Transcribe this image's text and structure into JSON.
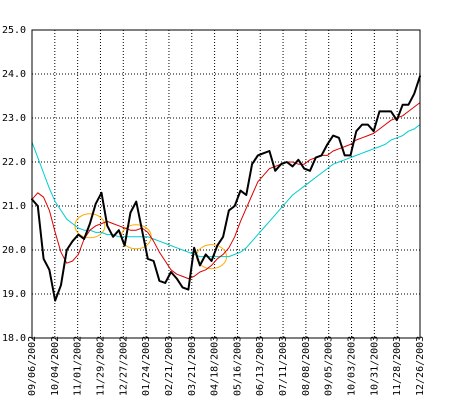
{
  "chart_data": {
    "type": "line",
    "title": "",
    "xlabel": "",
    "ylabel": "",
    "ylim": [
      18.0,
      25.0
    ],
    "y_ticks": [
      "18.0",
      "19.0",
      "20.0",
      "21.0",
      "22.0",
      "23.0",
      "24.0",
      "25.0"
    ],
    "x_ticks": [
      "09/06/2002",
      "10/04/2002",
      "11/01/2002",
      "11/29/2002",
      "12/27/2002",
      "01/24/2003",
      "02/21/2003",
      "03/21/2003",
      "04/18/2003",
      "05/16/2003",
      "06/13/2003",
      "07/11/2003",
      "08/08/2003",
      "09/05/2003",
      "10/03/2003",
      "10/31/2003",
      "11/28/2003",
      "12/26/2003"
    ],
    "grid": true,
    "legend": "none",
    "colors": {
      "background": "#ffffff",
      "grid": "#000000",
      "axis": "#000000",
      "price": "#000000",
      "ma_short": "#dd0000",
      "ma_long": "#00cccc",
      "highlight": "#ffaa00"
    },
    "series": [
      {
        "role": "price",
        "values": [
          21.15,
          21.0,
          19.8,
          19.55,
          18.85,
          19.2,
          20.0,
          20.2,
          20.35,
          20.25,
          20.6,
          21.05,
          21.3,
          20.55,
          20.3,
          20.45,
          20.1,
          20.85,
          21.1,
          20.45,
          19.8,
          19.75,
          19.3,
          19.25,
          19.5,
          19.35,
          19.15,
          19.1,
          20.05,
          19.65,
          19.9,
          19.75,
          20.1,
          20.3,
          20.9,
          21.0,
          21.35,
          21.25,
          21.95,
          22.15,
          22.2,
          22.25,
          21.8,
          21.95,
          22.0,
          21.9,
          22.05,
          21.85,
          21.8,
          22.1,
          22.15,
          22.4,
          22.6,
          22.55,
          22.15,
          22.15,
          22.7,
          22.85,
          22.85,
          22.7,
          23.15,
          23.15,
          23.15,
          22.95,
          23.3,
          23.3,
          23.55,
          23.95
        ]
      },
      {
        "role": "moving-average-short",
        "values": [
          21.15,
          21.3,
          21.2,
          20.9,
          20.4,
          19.95,
          19.7,
          19.75,
          19.9,
          20.25,
          20.45,
          20.55,
          20.6,
          20.65,
          20.6,
          20.55,
          20.5,
          20.45,
          20.45,
          20.5,
          20.4,
          20.2,
          19.95,
          19.75,
          19.55,
          19.45,
          19.4,
          19.35,
          19.4,
          19.5,
          19.55,
          19.65,
          19.8,
          19.9,
          20.05,
          20.3,
          20.65,
          20.95,
          21.25,
          21.55,
          21.7,
          21.85,
          21.9,
          21.95,
          22.0,
          22.0,
          21.95,
          21.95,
          22.05,
          22.1,
          22.15,
          22.15,
          22.25,
          22.3,
          22.35,
          22.4,
          22.5,
          22.55,
          22.6,
          22.65,
          22.75,
          22.85,
          22.95,
          23.0,
          23.05,
          23.15,
          23.25,
          23.35
        ]
      },
      {
        "role": "moving-average-long",
        "values": [
          22.45,
          22.1,
          21.75,
          21.4,
          21.1,
          20.9,
          20.7,
          20.6,
          20.5,
          20.45,
          20.45,
          20.4,
          20.4,
          20.35,
          20.35,
          20.3,
          20.3,
          20.3,
          20.3,
          20.3,
          20.3,
          20.25,
          20.2,
          20.15,
          20.1,
          20.05,
          20.0,
          19.95,
          19.9,
          19.85,
          19.85,
          19.85,
          19.85,
          19.85,
          19.85,
          19.9,
          19.95,
          20.05,
          20.2,
          20.35,
          20.5,
          20.65,
          20.8,
          20.95,
          21.1,
          21.25,
          21.35,
          21.45,
          21.55,
          21.65,
          21.75,
          21.85,
          21.95,
          22.0,
          22.05,
          22.1,
          22.15,
          22.2,
          22.25,
          22.3,
          22.35,
          22.4,
          22.5,
          22.55,
          22.6,
          22.7,
          22.75,
          22.85
        ]
      }
    ],
    "highlights": [
      {
        "marker": "ellipse",
        "x_index": 10,
        "y": 20.55
      },
      {
        "marker": "ellipse",
        "x_index": 18,
        "y": 20.3
      },
      {
        "marker": "ellipse",
        "x_index": 31,
        "y": 19.85
      }
    ]
  }
}
